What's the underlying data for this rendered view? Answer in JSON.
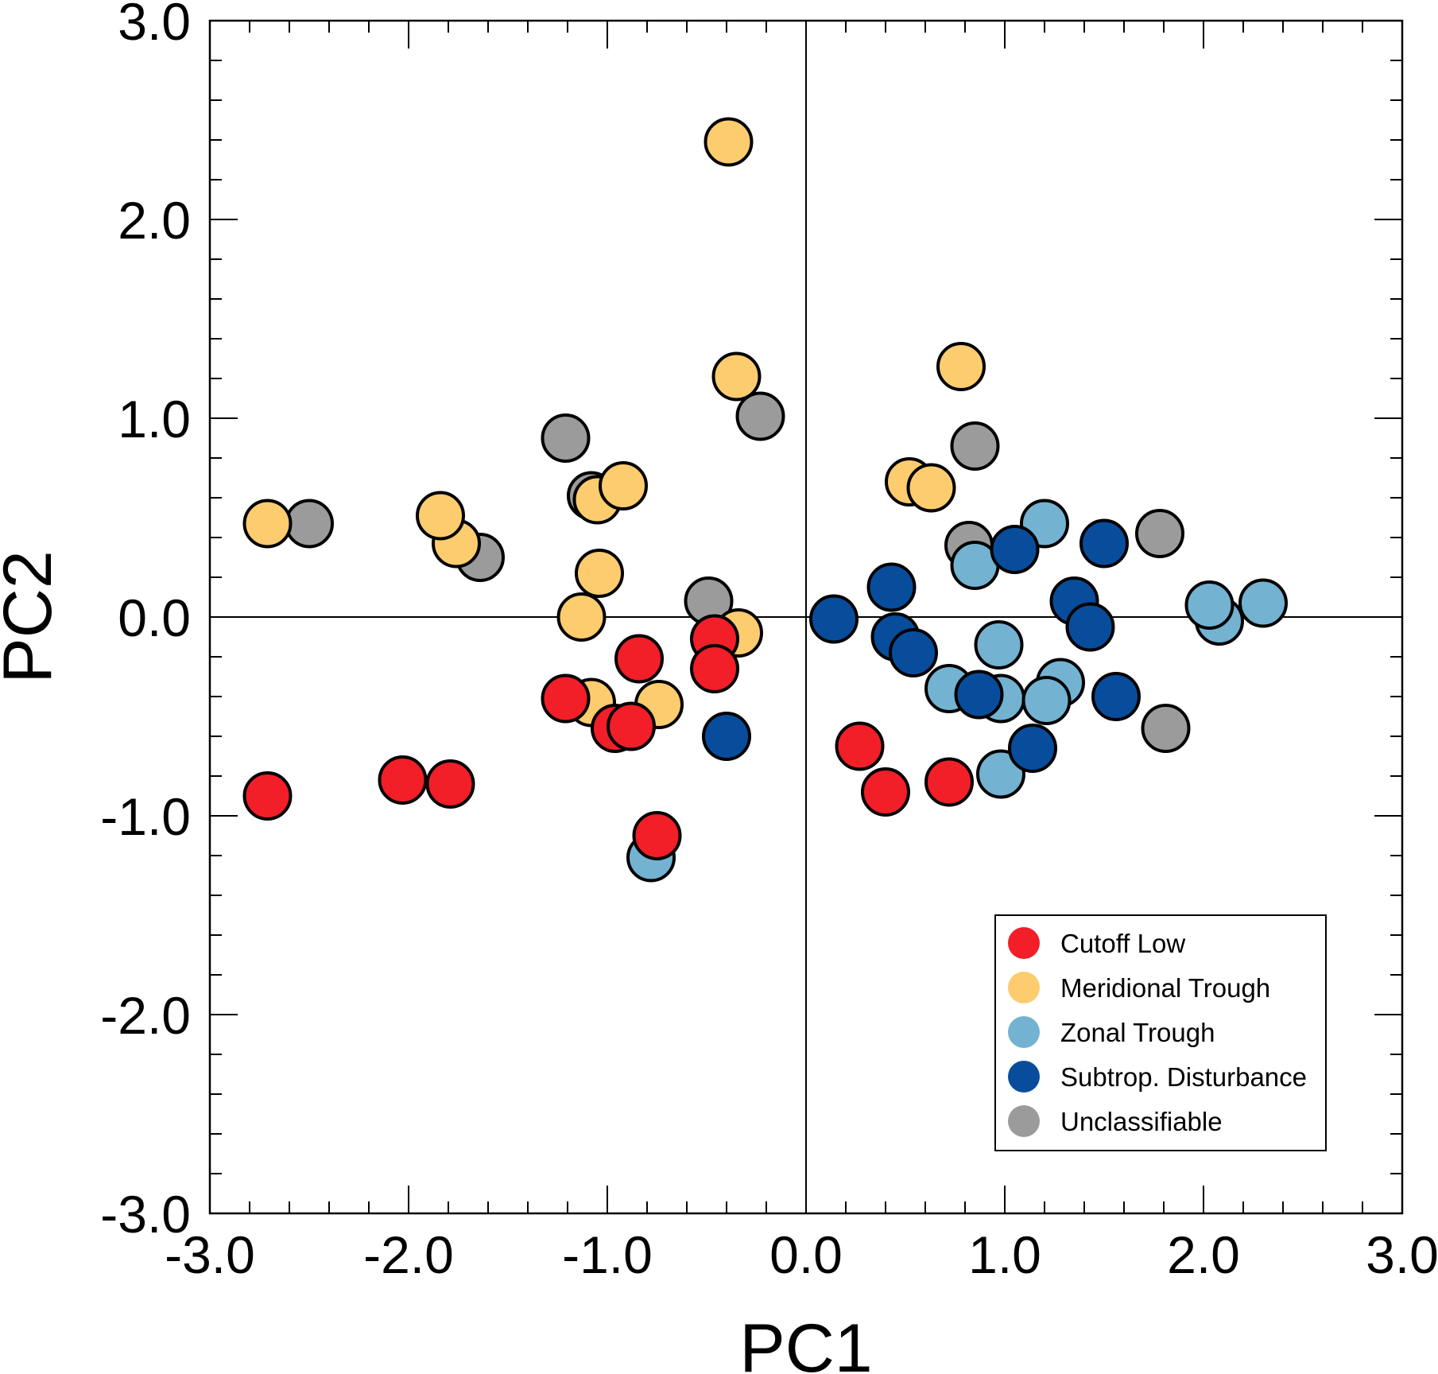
{
  "chart_data": {
    "type": "scatter",
    "title": "",
    "xlabel": "PC1",
    "ylabel": "PC2",
    "xlim": [
      -3.0,
      3.0
    ],
    "ylim": [
      -3.0,
      3.0
    ],
    "x_major_ticks": [
      -3.0,
      -2.0,
      -1.0,
      0.0,
      1.0,
      2.0,
      3.0
    ],
    "y_major_ticks": [
      -3.0,
      -2.0,
      -1.0,
      0.0,
      1.0,
      2.0,
      3.0
    ],
    "x_tick_labels": [
      "-3.0",
      "-2.0",
      "-1.0",
      "0.0",
      "1.0",
      "2.0",
      "3.0"
    ],
    "y_tick_labels": [
      "-3.0",
      "-2.0",
      "-1.0",
      "0.0",
      "1.0",
      "2.0",
      "3.0"
    ],
    "minor_tick_step": 0.2,
    "zero_lines": true,
    "grid": false,
    "legend_position": "bottom-right",
    "series": [
      {
        "name": "Unclassifiable",
        "color": "#9B9B9B",
        "points": [
          [
            -2.5,
            0.47
          ],
          [
            -1.64,
            0.3
          ],
          [
            -1.21,
            0.9
          ],
          [
            -1.08,
            0.61
          ],
          [
            -0.23,
            1.01
          ],
          [
            -0.49,
            0.08
          ],
          [
            0.85,
            0.86
          ],
          [
            0.82,
            0.36
          ],
          [
            1.78,
            0.42
          ],
          [
            1.81,
            -0.56
          ]
        ]
      },
      {
        "name": "Meridional Trough",
        "color": "#FDCC6E",
        "points": [
          [
            -2.71,
            0.47
          ],
          [
            -1.76,
            0.37
          ],
          [
            -1.84,
            0.51
          ],
          [
            -1.05,
            0.59
          ],
          [
            -0.92,
            0.66
          ],
          [
            -1.04,
            0.22
          ],
          [
            -1.13,
            0.0
          ],
          [
            -0.39,
            2.39
          ],
          [
            -0.35,
            1.21
          ],
          [
            -0.34,
            -0.08
          ],
          [
            -1.08,
            -0.43
          ],
          [
            -0.74,
            -0.44
          ],
          [
            0.78,
            1.26
          ],
          [
            0.52,
            0.68
          ],
          [
            0.63,
            0.65
          ]
        ]
      },
      {
        "name": "Zonal Trough",
        "color": "#73B2D1",
        "points": [
          [
            -0.78,
            -1.21
          ],
          [
            0.85,
            0.26
          ],
          [
            1.2,
            0.47
          ],
          [
            0.97,
            -0.14
          ],
          [
            0.72,
            -0.36
          ],
          [
            0.98,
            -0.41
          ],
          [
            1.28,
            -0.33
          ],
          [
            1.21,
            -0.42
          ],
          [
            0.98,
            -0.79
          ],
          [
            2.08,
            -0.02
          ],
          [
            2.03,
            0.06
          ],
          [
            2.3,
            0.07
          ]
        ]
      },
      {
        "name": "Subtrop. Disturbance",
        "color": "#084D9C",
        "points": [
          [
            -0.4,
            -0.6
          ],
          [
            0.14,
            -0.01
          ],
          [
            0.43,
            0.15
          ],
          [
            0.45,
            -0.1
          ],
          [
            0.54,
            -0.18
          ],
          [
            0.87,
            -0.39
          ],
          [
            1.05,
            0.34
          ],
          [
            1.5,
            0.37
          ],
          [
            1.35,
            0.08
          ],
          [
            1.43,
            -0.05
          ],
          [
            1.14,
            -0.66
          ],
          [
            1.56,
            -0.4
          ]
        ]
      },
      {
        "name": "Cutoff Low",
        "color": "#F21E28",
        "points": [
          [
            -2.71,
            -0.9
          ],
          [
            -2.03,
            -0.82
          ],
          [
            -1.79,
            -0.84
          ],
          [
            -1.21,
            -0.41
          ],
          [
            -0.96,
            -0.56
          ],
          [
            -0.88,
            -0.55
          ],
          [
            -0.84,
            -0.21
          ],
          [
            -0.46,
            -0.11
          ],
          [
            -0.46,
            -0.26
          ],
          [
            -0.75,
            -1.1
          ],
          [
            0.27,
            -0.65
          ],
          [
            0.4,
            -0.88
          ],
          [
            0.72,
            -0.83
          ]
        ]
      }
    ],
    "legend": [
      {
        "label": "Cutoff Low",
        "color": "#F21E28"
      },
      {
        "label": "Meridional Trough",
        "color": "#FDCC6E"
      },
      {
        "label": "Zonal Trough",
        "color": "#73B2D1"
      },
      {
        "label": "Subtrop. Disturbance",
        "color": "#084D9C"
      },
      {
        "label": "Unclassifiable",
        "color": "#9B9B9B"
      }
    ]
  }
}
